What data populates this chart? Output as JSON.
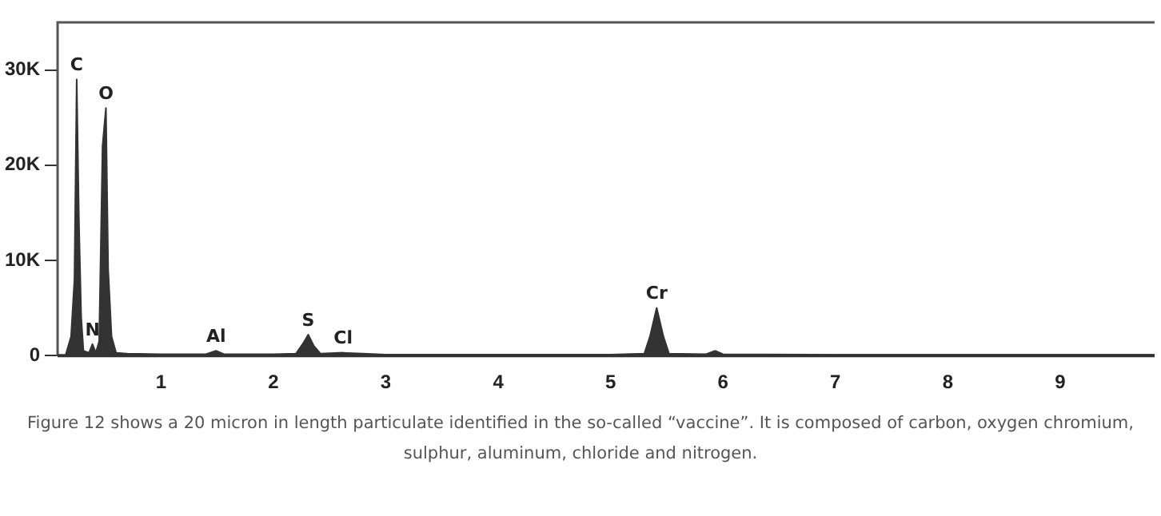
{
  "chart_data": {
    "type": "area",
    "x": [
      0.15,
      0.2,
      0.23,
      0.25,
      0.27,
      0.29,
      0.31,
      0.36,
      0.39,
      0.42,
      0.45,
      0.48,
      0.51,
      0.53,
      0.56,
      0.6,
      0.7,
      1.0,
      1.4,
      1.49,
      1.56,
      2.0,
      2.2,
      2.26,
      2.31,
      2.36,
      2.42,
      2.62,
      2.8,
      3.0,
      4.0,
      5.0,
      5.3,
      5.35,
      5.41,
      5.47,
      5.52,
      5.85,
      5.93,
      6.0,
      7.0,
      9.84
    ],
    "series": [
      {
        "color": "#333333",
        "values": [
          0,
          2000,
          8000,
          29000,
          14000,
          4000,
          500,
          300,
          1200,
          300,
          1500,
          22000,
          26000,
          9000,
          2000,
          300,
          200,
          150,
          150,
          500,
          150,
          150,
          200,
          1200,
          2200,
          1000,
          200,
          300,
          200,
          100,
          100,
          100,
          200,
          2000,
          5000,
          2000,
          200,
          150,
          500,
          150,
          80,
          80
        ]
      }
    ],
    "xlim": [
      0.08,
      9.84
    ],
    "xticks": [
      1,
      2,
      3,
      4,
      5,
      6,
      7,
      8,
      9
    ],
    "ylim": [
      0,
      35000
    ],
    "yticks": [
      {
        "value": 0,
        "label": "0"
      },
      {
        "value": 10000,
        "label": "10K"
      },
      {
        "value": 20000,
        "label": "20K"
      },
      {
        "value": 30000,
        "label": "30K"
      }
    ],
    "grid": false,
    "legend": false,
    "marker": "none",
    "annotations": [
      {
        "text": "C",
        "x": 0.25,
        "y": 29000
      },
      {
        "text": "O",
        "x": 0.51,
        "y": 26000
      },
      {
        "text": "N",
        "x": 0.39,
        "y": 1200
      },
      {
        "text": "Al",
        "x": 1.49,
        "y": 500
      },
      {
        "text": "S",
        "x": 2.31,
        "y": 2200
      },
      {
        "text": "Cl",
        "x": 2.62,
        "y": 300
      },
      {
        "text": "Cr",
        "x": 5.41,
        "y": 5000
      },
      "Figure 12 shows a  20 micron in length particulate identified in the so-called “vaccine”. It is composed of carbon, oxygen chromium, sulphur, aluminum, chloride and nitrogen."
    ]
  }
}
